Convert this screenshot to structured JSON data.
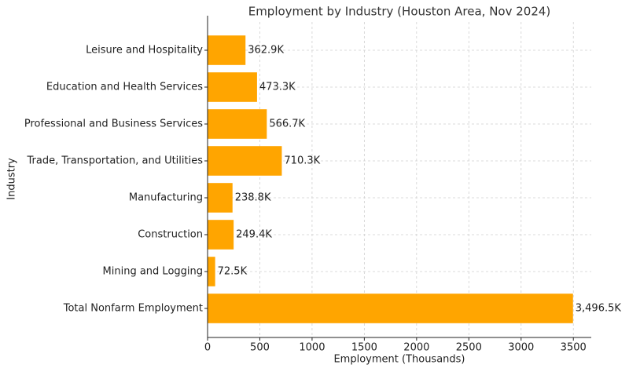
{
  "chart_data": {
    "type": "barh",
    "title": "Employment by Industry (Houston Area, Nov 2024)",
    "x_label": "Employment (Thousands)",
    "y_label": "Industry",
    "categories": [
      "Leisure and Hospitality",
      "Education and Health Services",
      "Professional and Business Services",
      "Trade, Transportation, and Utilities",
      "Manufacturing",
      "Construction",
      "Mining and Logging",
      "Total Nonfarm Employment"
    ],
    "values": [
      362.9,
      473.3,
      566.7,
      710.3,
      238.8,
      249.4,
      72.5,
      3496.5
    ],
    "value_labels": [
      "362.9K",
      "473.3K",
      "566.7K",
      "710.3K",
      "238.8K",
      "249.4K",
      "72.5K",
      "3,496.5K"
    ],
    "color": "#ffa500",
    "xlim": [
      0,
      3671.3
    ],
    "xticks": [
      0,
      500,
      1000,
      1500,
      2000,
      2500,
      3000,
      3500
    ],
    "grid": true
  }
}
